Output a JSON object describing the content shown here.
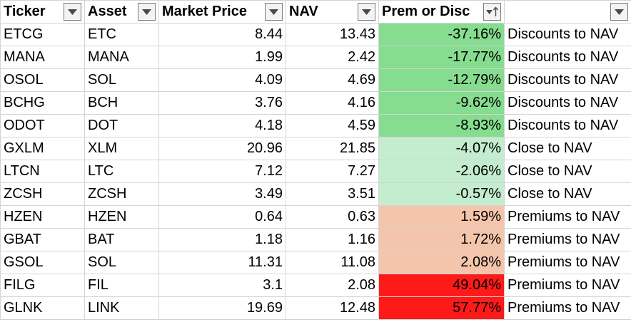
{
  "headers": {
    "ticker": "Ticker",
    "asset": "Asset",
    "market_price": "Market Price",
    "nav": "NAV",
    "prem_disc": "Prem or Disc",
    "status": ""
  },
  "colors": {
    "strong_discount": "#86dc8f",
    "mild_discount": "#c4ecce",
    "mild_premium": "#f5c5ab",
    "strong_premium": "#ff1a1a",
    "grid": "#d4d4d4",
    "filter_border": "#7a7a7a"
  },
  "icons": {
    "filter": "filter-dropdown-icon",
    "sort_ascending": "sort-ascending-filter-icon"
  },
  "rows": [
    {
      "ticker": "ETCG",
      "asset": "ETC",
      "market_price": "8.44",
      "nav": "13.43",
      "prem_disc": "-37.16%",
      "status": "Discounts to NAV",
      "fill": "strong_discount"
    },
    {
      "ticker": "MANA",
      "asset": "MANA",
      "market_price": "1.99",
      "nav": "2.42",
      "prem_disc": "-17.77%",
      "status": "Discounts to NAV",
      "fill": "strong_discount"
    },
    {
      "ticker": "OSOL",
      "asset": "SOL",
      "market_price": "4.09",
      "nav": "4.69",
      "prem_disc": "-12.79%",
      "status": "Discounts to NAV",
      "fill": "strong_discount"
    },
    {
      "ticker": "BCHG",
      "asset": "BCH",
      "market_price": "3.76",
      "nav": "4.16",
      "prem_disc": "-9.62%",
      "status": "Discounts to NAV",
      "fill": "strong_discount"
    },
    {
      "ticker": "ODOT",
      "asset": "DOT",
      "market_price": "4.18",
      "nav": "4.59",
      "prem_disc": "-8.93%",
      "status": "Discounts to NAV",
      "fill": "strong_discount"
    },
    {
      "ticker": "GXLM",
      "asset": "XLM",
      "market_price": "20.96",
      "nav": "21.85",
      "prem_disc": "-4.07%",
      "status": "Close to NAV",
      "fill": "mild_discount"
    },
    {
      "ticker": "LTCN",
      "asset": "LTC",
      "market_price": "7.12",
      "nav": "7.27",
      "prem_disc": "-2.06%",
      "status": "Close to NAV",
      "fill": "mild_discount"
    },
    {
      "ticker": "ZCSH",
      "asset": "ZCSH",
      "market_price": "3.49",
      "nav": "3.51",
      "prem_disc": "-0.57%",
      "status": "Close to NAV",
      "fill": "mild_discount"
    },
    {
      "ticker": "HZEN",
      "asset": "HZEN",
      "market_price": "0.64",
      "nav": "0.63",
      "prem_disc": "1.59%",
      "status": "Premiums to NAV",
      "fill": "mild_premium"
    },
    {
      "ticker": "GBAT",
      "asset": "BAT",
      "market_price": "1.18",
      "nav": "1.16",
      "prem_disc": "1.72%",
      "status": "Premiums to NAV",
      "fill": "mild_premium"
    },
    {
      "ticker": "GSOL",
      "asset": "SOL",
      "market_price": "11.31",
      "nav": "11.08",
      "prem_disc": "2.08%",
      "status": "Premiums to NAV",
      "fill": "mild_premium"
    },
    {
      "ticker": "FILG",
      "asset": "FIL",
      "market_price": "3.1",
      "nav": "2.08",
      "prem_disc": "49.04%",
      "status": "Premiums to NAV",
      "fill": "strong_premium"
    },
    {
      "ticker": "GLNK",
      "asset": "LINK",
      "market_price": "19.69",
      "nav": "12.48",
      "prem_disc": "57.77%",
      "status": "Premiums to NAV",
      "fill": "strong_premium"
    }
  ]
}
